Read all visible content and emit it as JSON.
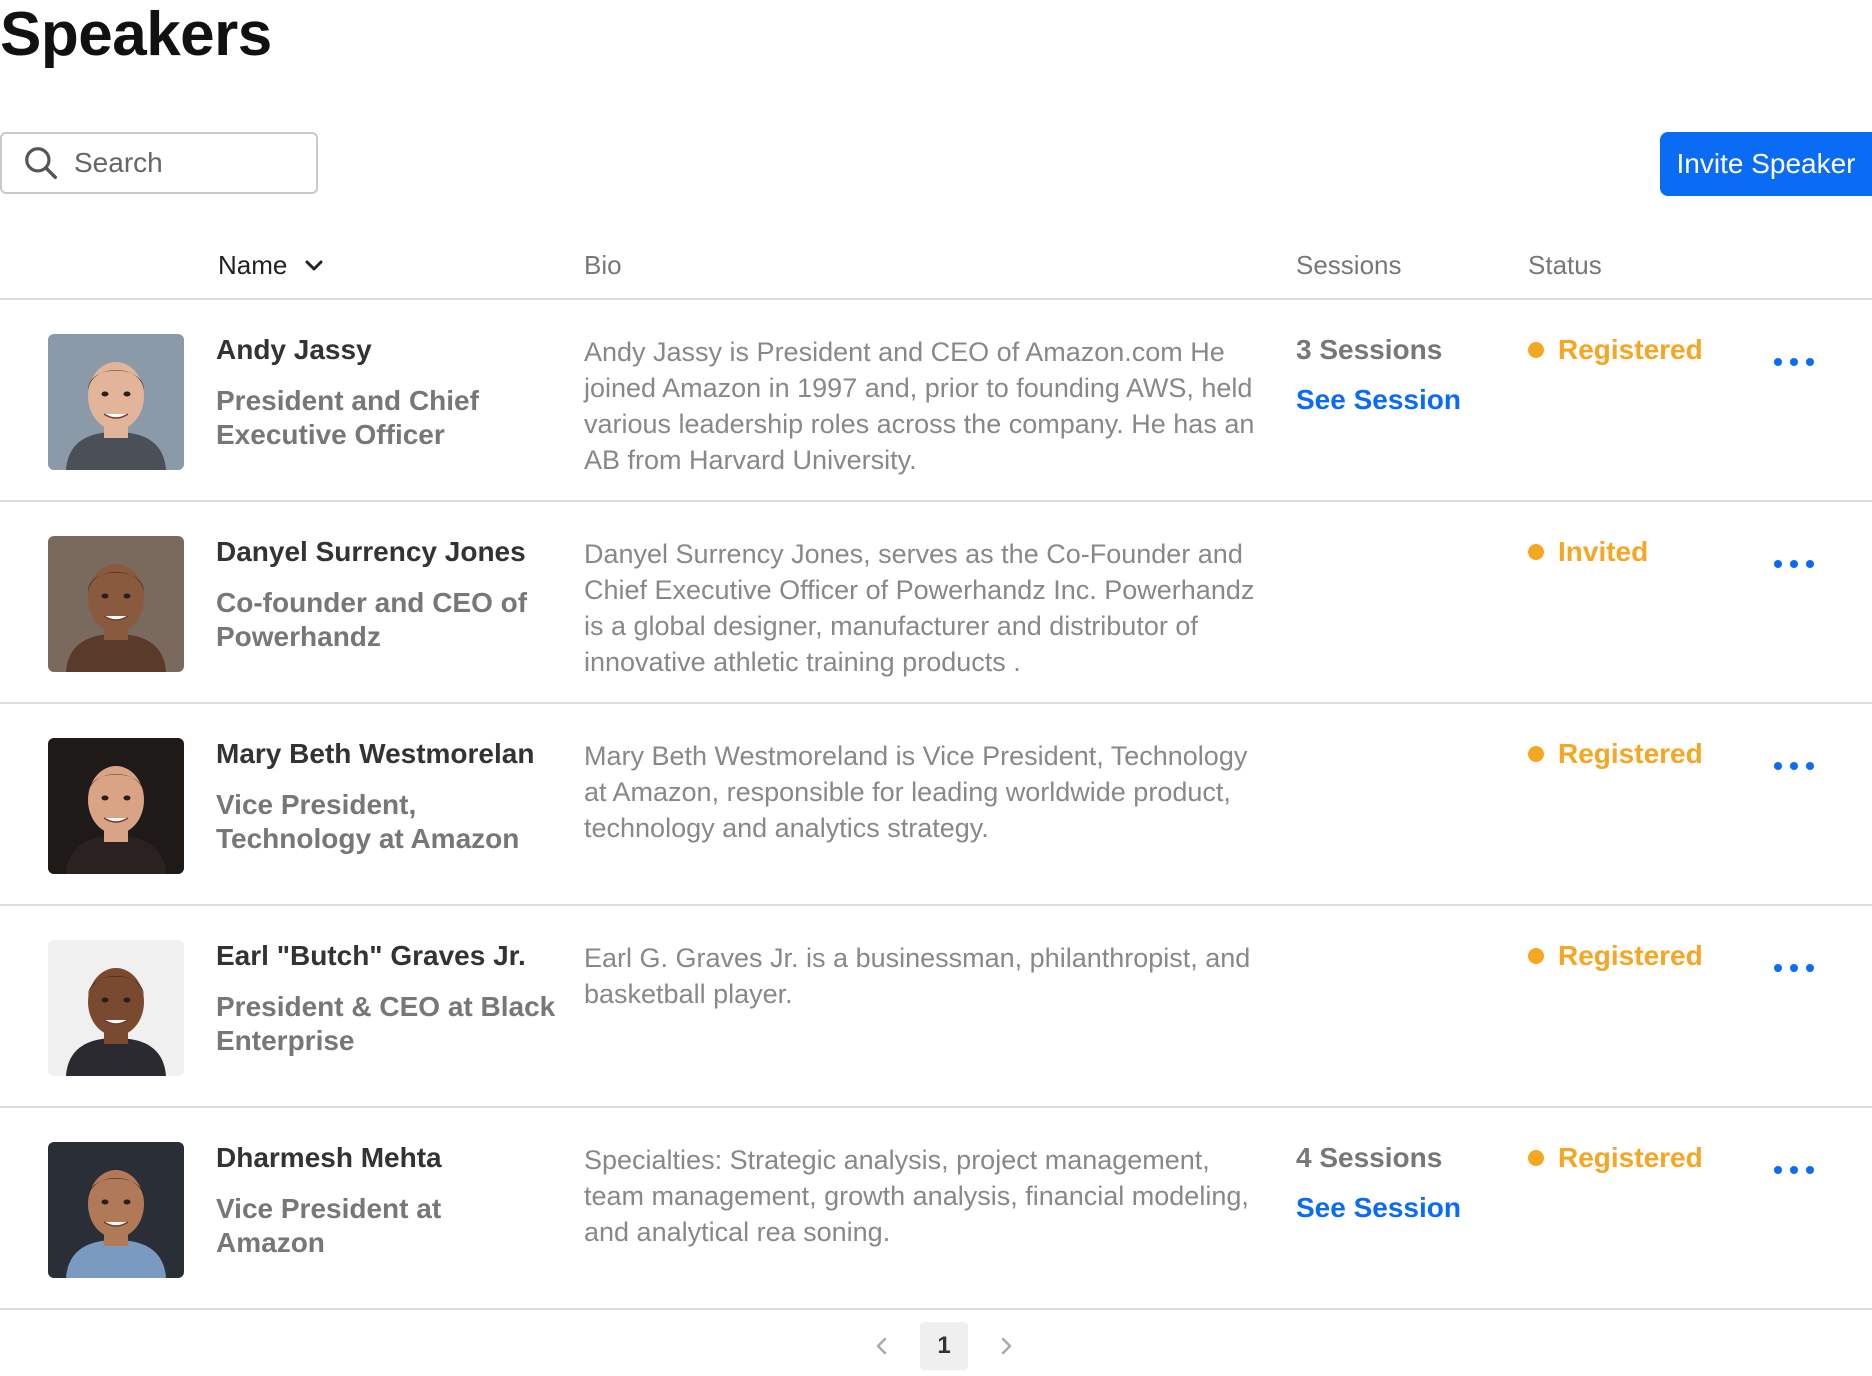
{
  "page": {
    "title": "Speakers"
  },
  "search": {
    "placeholder": "Search",
    "value": "",
    "icon": "search-icon"
  },
  "toolbar": {
    "invite_label": "Invite Speaker"
  },
  "table": {
    "columns": {
      "name": "Name",
      "bio": "Bio",
      "sessions": "Sessions",
      "status": "Status"
    },
    "sort_icon": "chevron-down-icon",
    "rows": [
      {
        "name": "Andy Jassy",
        "role": "President and Chief Executive Officer",
        "bio": "Andy Jassy is President and CEO of Amazon.com He joined Amazon in 1997 and, prior to founding AWS, held various leadership roles across the company. He has an AB from Harvard University.",
        "sessions": "3 Sessions",
        "see_session": "See Session",
        "status": "Registered",
        "status_color": "#f5a623",
        "avatar": {
          "bg": "#8a9aa8",
          "skin": "#e2b59a",
          "hair": "#3a2e2a",
          "shirt": "#4a4f58"
        }
      },
      {
        "name": "Danyel Surrency Jones",
        "role": "Co-founder and CEO of Powerhandz",
        "bio": "Danyel Surrency Jones, serves as the Co-Founder and Chief Executive Officer of Powerhandz Inc. Powerhandz is a global designer, manufacturer and distributor of innovative athletic training products .",
        "sessions": "",
        "see_session": "",
        "status": "Invited",
        "status_color": "#f5a623",
        "avatar": {
          "bg": "#7a6a5e",
          "skin": "#8a5a3e",
          "hair": "#2a1a12",
          "shirt": "#5a3a2a"
        }
      },
      {
        "name": "Mary Beth Westmorelan",
        "role": "Vice President, Technology  at Amazon",
        "bio": "Mary Beth Westmoreland is Vice President, Technology at Amazon, responsible for leading worldwide product, technology and analytics strategy.",
        "sessions": "",
        "see_session": "",
        "status": "Registered",
        "status_color": "#f5a623",
        "avatar": {
          "bg": "#1e1a18",
          "skin": "#d9a486",
          "hair": "#4a2a1a",
          "shirt": "#2a2220"
        }
      },
      {
        "name": "Earl \"Butch\" Graves Jr.",
        "role": "President & CEO at Black Enterprise",
        "bio": "Earl G. Graves Jr. is a businessman, philanthropist, and basketball player.",
        "sessions": "",
        "see_session": "",
        "status": "Registered",
        "status_color": "#f5a623",
        "avatar": {
          "bg": "#f0f0f0",
          "skin": "#7a4a30",
          "hair": "#2a1a14",
          "shirt": "#2a2a30"
        }
      },
      {
        "name": "Dharmesh Mehta",
        "role": "Vice President at Amazon",
        "bio": "Specialties: Strategic analysis, project management, team management, growth analysis, financial modeling, and analytical rea soning.",
        "sessions": "4 Sessions",
        "see_session": "See Session",
        "status": "Registered",
        "status_color": "#f5a623",
        "avatar": {
          "bg": "#2a2e36",
          "skin": "#b07a58",
          "hair": "#1a1412",
          "shirt": "#7a9ac0"
        }
      }
    ]
  },
  "pagination": {
    "current": "1",
    "prev_icon": "chevron-left-icon",
    "next_icon": "chevron-right-icon"
  },
  "colors": {
    "accent": "#0a6cf5",
    "status_orange": "#f5a623"
  }
}
